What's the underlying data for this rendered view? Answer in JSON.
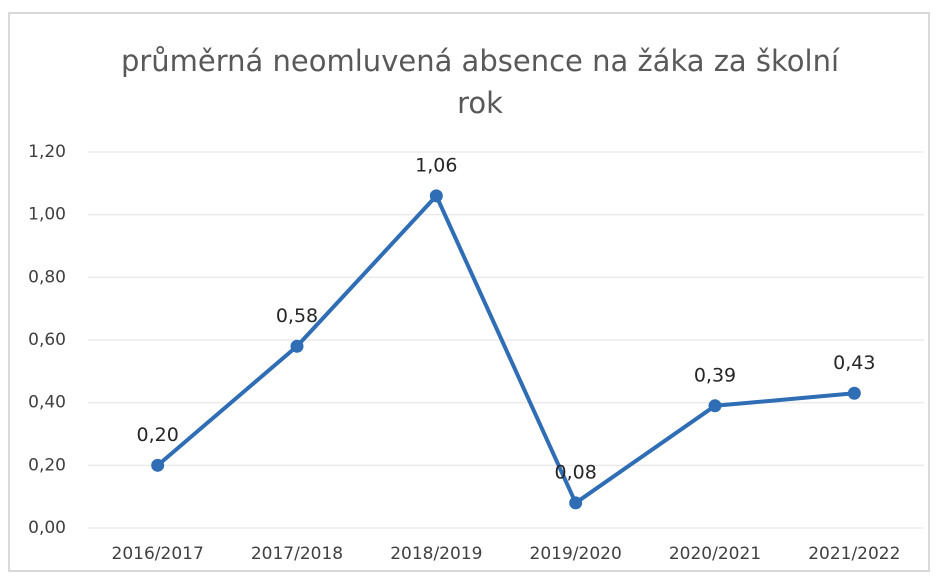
{
  "chart_data": {
    "type": "line",
    "title": "průměrná neomluvená absence na žáka za školní rok",
    "categories": [
      "2016/2017",
      "2017/2018",
      "2018/2019",
      "2019/2020",
      "2020/2021",
      "2021/2022"
    ],
    "series": [
      {
        "name": "průměrná neomluvená absence na žáka za školní rok",
        "color": "#2f6db5",
        "values": [
          0.2,
          0.58,
          1.06,
          0.08,
          0.39,
          0.43
        ],
        "value_labels": [
          "0,20",
          "0,58",
          "1,06",
          "0,08",
          "0,39",
          "0,43"
        ]
      }
    ],
    "ylim": [
      0,
      1.2
    ],
    "yticks": [
      {
        "value": 0,
        "label": "0,00"
      },
      {
        "value": 0.2,
        "label": "0,20"
      },
      {
        "value": 0.4,
        "label": "0,40"
      },
      {
        "value": 0.6,
        "label": "0,60"
      },
      {
        "value": 0.8,
        "label": "0,80"
      },
      {
        "value": 1.0,
        "label": "1,00"
      },
      {
        "value": 1.2,
        "label": "1,20"
      }
    ],
    "grid": true
  }
}
